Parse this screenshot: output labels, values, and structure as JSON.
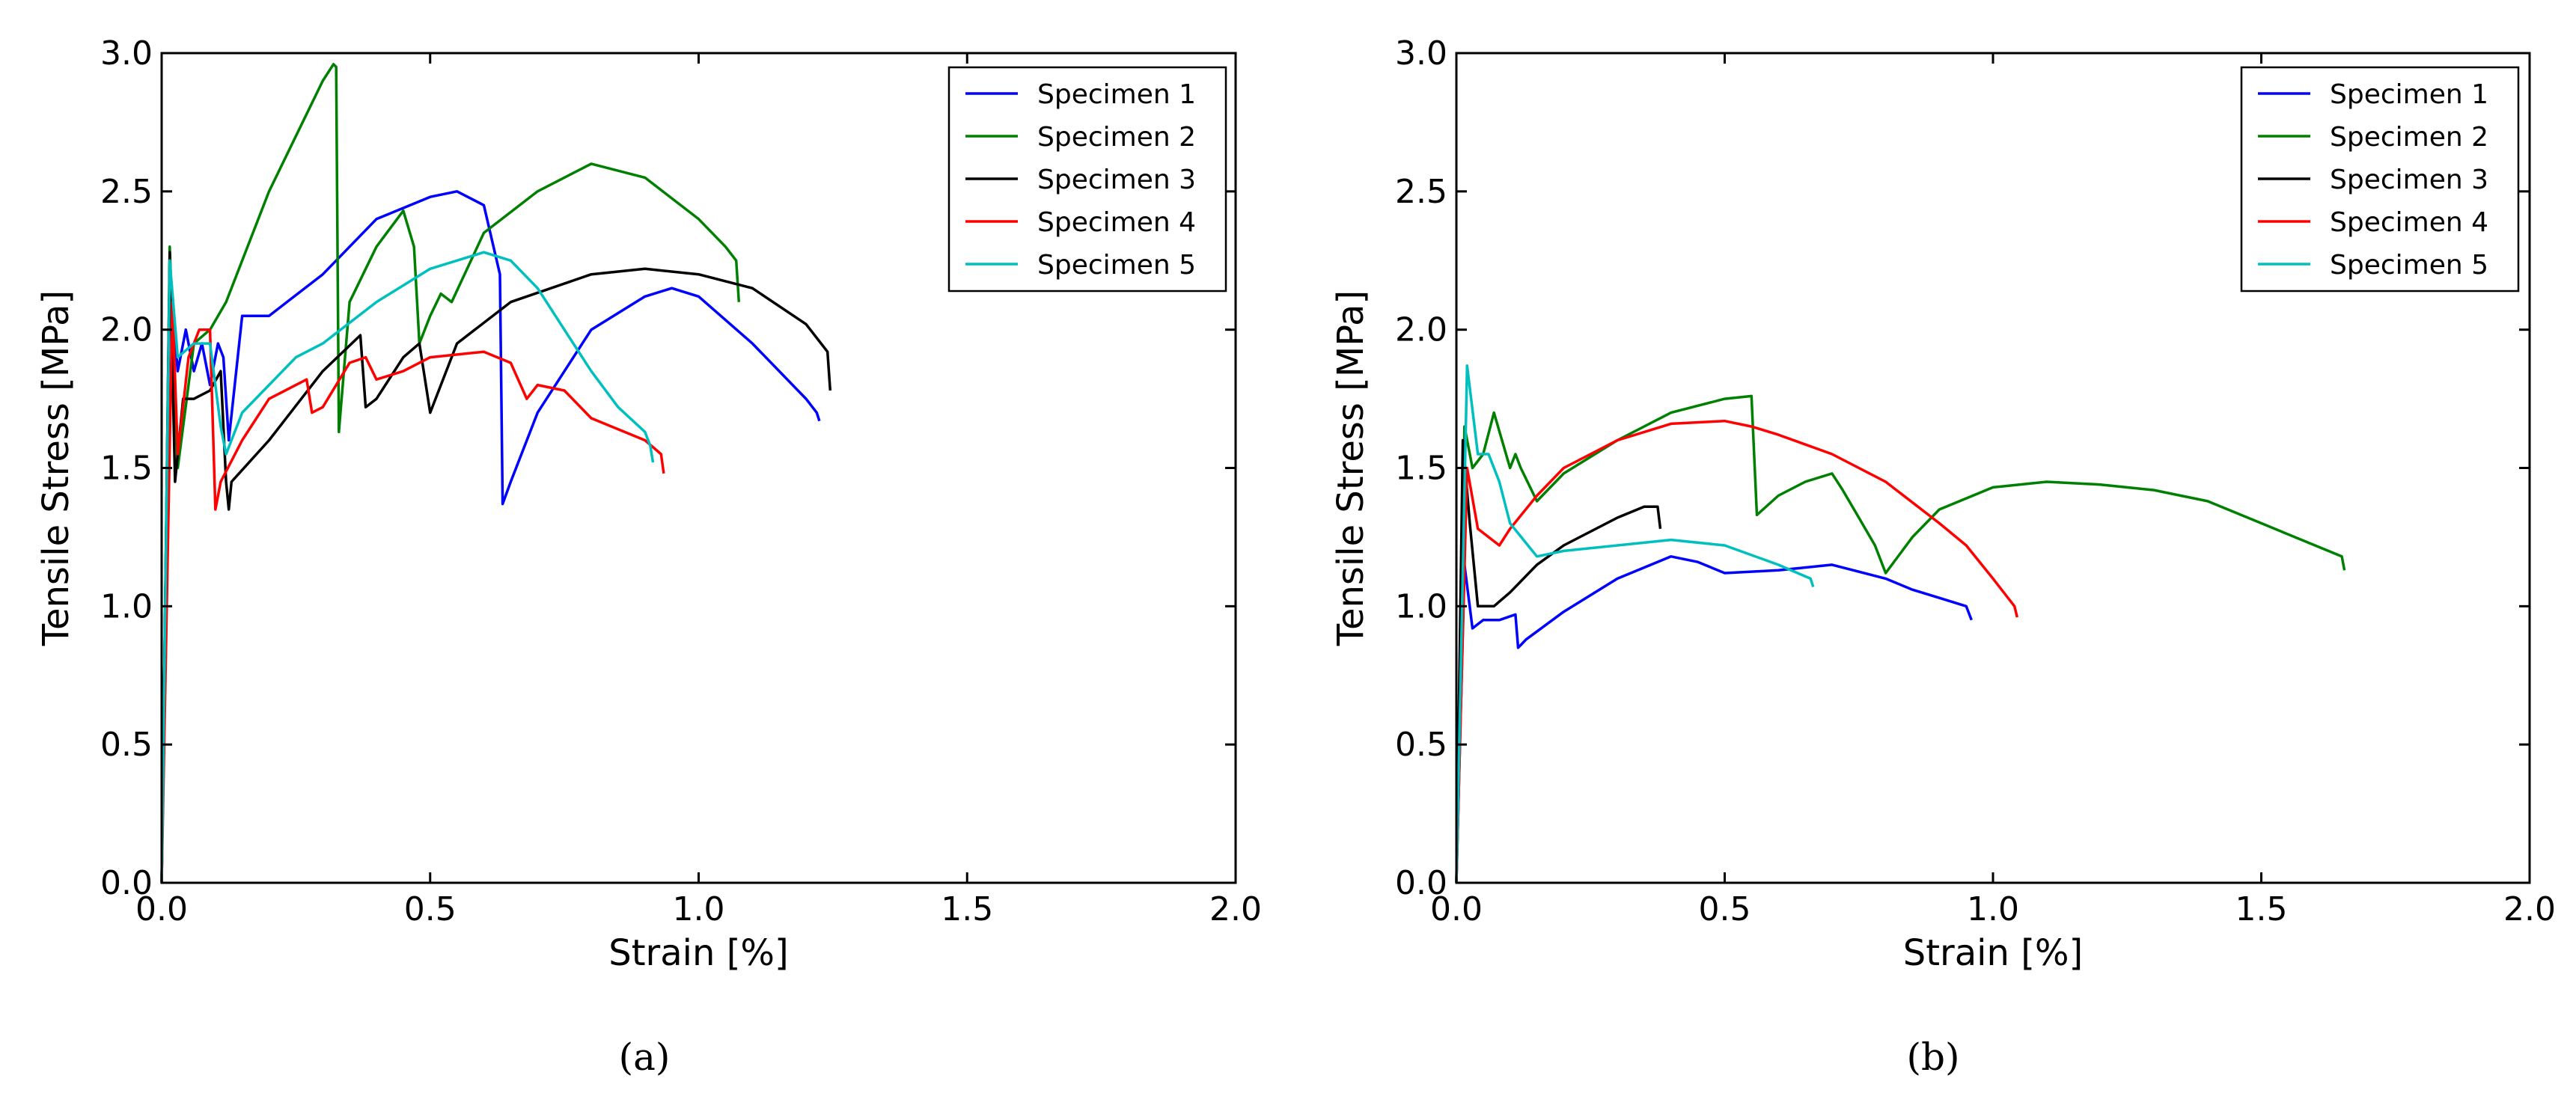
{
  "colors": {
    "Specimen 1": "#0000ff",
    "Specimen 2": "#008000",
    "Specimen 3": "#000000",
    "Specimen 4": "#ff0000",
    "Specimen 5": "#00bfbf"
  },
  "chart_data": [
    {
      "type": "line",
      "caption": "(a)",
      "xlabel": "Strain [%]",
      "ylabel": "Tensile Stress [MPa]",
      "xlim": [
        0,
        2.0
      ],
      "ylim": [
        0,
        3.0
      ],
      "xticks": [
        "0.0",
        "0.5",
        "1.0",
        "1.5",
        "2.0"
      ],
      "yticks": [
        "0.0",
        "0.5",
        "1.0",
        "1.5",
        "2.0",
        "2.5",
        "3.0"
      ],
      "legend_position": "top-right",
      "series": [
        {
          "name": "Specimen 1",
          "x": [
            0,
            0.015,
            0.03,
            0.045,
            0.06,
            0.075,
            0.09,
            0.105,
            0.115,
            0.125,
            0.15,
            0.2,
            0.3,
            0.4,
            0.5,
            0.55,
            0.6,
            0.63,
            0.635,
            0.65,
            0.7,
            0.8,
            0.9,
            0.95,
            1.0,
            1.1,
            1.2,
            1.22,
            1.225
          ],
          "y": [
            0,
            2.2,
            1.85,
            2.0,
            1.85,
            1.95,
            1.8,
            1.95,
            1.9,
            1.6,
            2.05,
            2.05,
            2.2,
            2.4,
            2.48,
            2.5,
            2.45,
            2.2,
            1.37,
            1.45,
            1.7,
            2.0,
            2.12,
            2.15,
            2.12,
            1.95,
            1.75,
            1.7,
            1.67
          ]
        },
        {
          "name": "Specimen 2",
          "x": [
            0,
            0.015,
            0.03,
            0.06,
            0.09,
            0.12,
            0.2,
            0.3,
            0.32,
            0.325,
            0.33,
            0.35,
            0.4,
            0.45,
            0.47,
            0.48,
            0.5,
            0.52,
            0.54,
            0.6,
            0.7,
            0.8,
            0.9,
            1.0,
            1.05,
            1.07,
            1.075
          ],
          "y": [
            0,
            2.3,
            1.5,
            1.95,
            2.0,
            2.1,
            2.5,
            2.9,
            2.96,
            2.95,
            1.63,
            2.1,
            2.3,
            2.43,
            2.3,
            1.95,
            2.05,
            2.13,
            2.1,
            2.35,
            2.5,
            2.6,
            2.55,
            2.4,
            2.3,
            2.25,
            2.1
          ]
        },
        {
          "name": "Specimen 3",
          "x": [
            0,
            0.015,
            0.025,
            0.04,
            0.06,
            0.09,
            0.11,
            0.12,
            0.125,
            0.13,
            0.2,
            0.3,
            0.37,
            0.38,
            0.4,
            0.45,
            0.48,
            0.5,
            0.55,
            0.65,
            0.8,
            0.9,
            1.0,
            1.1,
            1.2,
            1.24,
            1.245
          ],
          "y": [
            0,
            2.28,
            1.45,
            1.75,
            1.75,
            1.78,
            1.85,
            1.45,
            1.35,
            1.45,
            1.6,
            1.85,
            1.98,
            1.72,
            1.75,
            1.9,
            1.95,
            1.7,
            1.95,
            2.1,
            2.2,
            2.22,
            2.2,
            2.15,
            2.02,
            1.92,
            1.78
          ]
        },
        {
          "name": "Specimen 4",
          "x": [
            0,
            0.02,
            0.03,
            0.05,
            0.07,
            0.09,
            0.1,
            0.11,
            0.15,
            0.2,
            0.27,
            0.28,
            0.3,
            0.35,
            0.38,
            0.4,
            0.45,
            0.5,
            0.6,
            0.65,
            0.68,
            0.7,
            0.75,
            0.8,
            0.9,
            0.93,
            0.935
          ],
          "y": [
            0,
            2.1,
            1.55,
            1.9,
            2.0,
            2.0,
            1.35,
            1.45,
            1.6,
            1.75,
            1.82,
            1.7,
            1.72,
            1.88,
            1.9,
            1.82,
            1.85,
            1.9,
            1.92,
            1.88,
            1.75,
            1.8,
            1.78,
            1.68,
            1.6,
            1.55,
            1.48
          ]
        },
        {
          "name": "Specimen 5",
          "x": [
            0,
            0.015,
            0.03,
            0.06,
            0.09,
            0.11,
            0.12,
            0.15,
            0.2,
            0.25,
            0.3,
            0.4,
            0.5,
            0.6,
            0.65,
            0.7,
            0.75,
            0.8,
            0.85,
            0.9,
            0.91,
            0.915
          ],
          "y": [
            0,
            2.25,
            1.9,
            1.95,
            1.95,
            1.65,
            1.55,
            1.7,
            1.8,
            1.9,
            1.95,
            2.1,
            2.22,
            2.28,
            2.25,
            2.15,
            2.0,
            1.85,
            1.72,
            1.63,
            1.58,
            1.52
          ]
        }
      ]
    },
    {
      "type": "line",
      "caption": "(b)",
      "xlabel": "Strain [%]",
      "ylabel": "Tensile Stress [MPa]",
      "xlim": [
        0,
        2.0
      ],
      "ylim": [
        0,
        3.0
      ],
      "xticks": [
        "0.0",
        "0.5",
        "1.0",
        "1.5",
        "2.0"
      ],
      "yticks": [
        "0.0",
        "0.5",
        "1.0",
        "1.5",
        "2.0",
        "2.5",
        "3.0"
      ],
      "legend_position": "top-right",
      "series": [
        {
          "name": "Specimen 1",
          "x": [
            0,
            0.015,
            0.03,
            0.05,
            0.08,
            0.11,
            0.115,
            0.13,
            0.2,
            0.3,
            0.4,
            0.45,
            0.5,
            0.6,
            0.7,
            0.8,
            0.85,
            0.9,
            0.95,
            0.96
          ],
          "y": [
            0,
            1.15,
            0.92,
            0.95,
            0.95,
            0.97,
            0.85,
            0.88,
            0.98,
            1.1,
            1.18,
            1.16,
            1.12,
            1.13,
            1.15,
            1.1,
            1.06,
            1.03,
            1.0,
            0.95
          ]
        },
        {
          "name": "Specimen 2",
          "x": [
            0,
            0.015,
            0.03,
            0.05,
            0.07,
            0.1,
            0.11,
            0.12,
            0.15,
            0.2,
            0.3,
            0.4,
            0.5,
            0.55,
            0.56,
            0.6,
            0.65,
            0.7,
            0.72,
            0.75,
            0.78,
            0.8,
            0.85,
            0.9,
            1.0,
            1.1,
            1.2,
            1.3,
            1.4,
            1.5,
            1.6,
            1.65,
            1.655
          ],
          "y": [
            0,
            1.65,
            1.5,
            1.55,
            1.7,
            1.5,
            1.55,
            1.5,
            1.38,
            1.48,
            1.6,
            1.7,
            1.75,
            1.76,
            1.33,
            1.4,
            1.45,
            1.48,
            1.42,
            1.32,
            1.22,
            1.12,
            1.25,
            1.35,
            1.43,
            1.45,
            1.44,
            1.42,
            1.38,
            1.3,
            1.22,
            1.18,
            1.13
          ]
        },
        {
          "name": "Specimen 3",
          "x": [
            0,
            0.012,
            0.025,
            0.04,
            0.07,
            0.1,
            0.15,
            0.2,
            0.3,
            0.35,
            0.375,
            0.38
          ],
          "y": [
            0,
            1.6,
            1.3,
            1.0,
            1.0,
            1.05,
            1.15,
            1.22,
            1.32,
            1.36,
            1.36,
            1.28
          ]
        },
        {
          "name": "Specimen 4",
          "x": [
            0,
            0.02,
            0.04,
            0.06,
            0.08,
            0.1,
            0.15,
            0.2,
            0.3,
            0.4,
            0.5,
            0.55,
            0.6,
            0.7,
            0.8,
            0.9,
            0.95,
            1.0,
            1.04,
            1.045
          ],
          "y": [
            0,
            1.5,
            1.28,
            1.25,
            1.22,
            1.28,
            1.4,
            1.5,
            1.6,
            1.66,
            1.67,
            1.65,
            1.62,
            1.55,
            1.45,
            1.3,
            1.22,
            1.1,
            1.0,
            0.96
          ]
        },
        {
          "name": "Specimen 5",
          "x": [
            0,
            0.02,
            0.04,
            0.06,
            0.08,
            0.1,
            0.15,
            0.2,
            0.3,
            0.4,
            0.5,
            0.6,
            0.66,
            0.665
          ],
          "y": [
            0,
            1.87,
            1.55,
            1.55,
            1.45,
            1.3,
            1.18,
            1.2,
            1.22,
            1.24,
            1.22,
            1.15,
            1.1,
            1.07
          ]
        }
      ]
    }
  ]
}
